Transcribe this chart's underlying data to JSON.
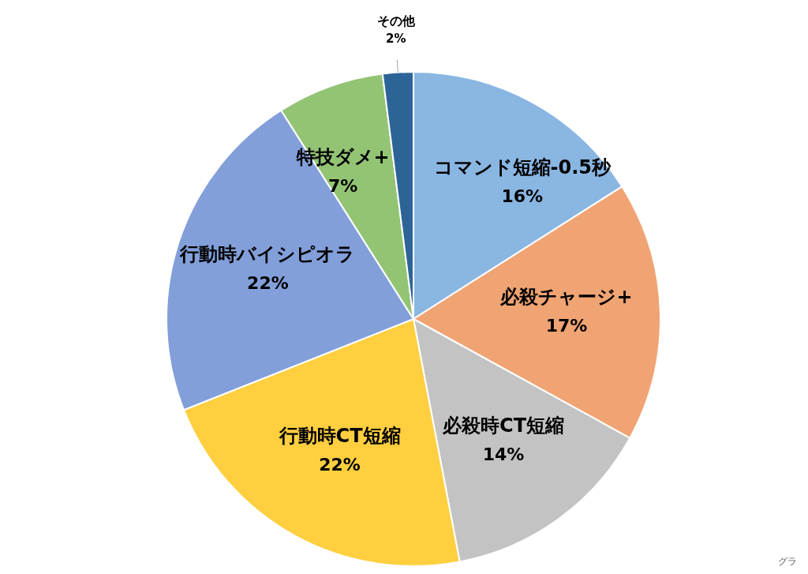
{
  "chart_data": {
    "type": "pie",
    "categories": [
      "コマンド短縮-0.5秒",
      "必殺チャージ+",
      "必殺時CT短縮",
      "行動時CT短縮",
      "行動時バイシピオラ",
      "特技ダメ+",
      "その他"
    ],
    "values": [
      16,
      17,
      14,
      22,
      22,
      7,
      2
    ],
    "value_labels": [
      "16%",
      "17%",
      "14%",
      "22%",
      "22%",
      "7%",
      "2%"
    ],
    "colors": [
      "#8ab6e2",
      "#f0a473",
      "#c3c3c3",
      "#ffcf40",
      "#829fda",
      "#93c474",
      "#2d6498"
    ],
    "annotations": [
      "グラ"
    ]
  }
}
